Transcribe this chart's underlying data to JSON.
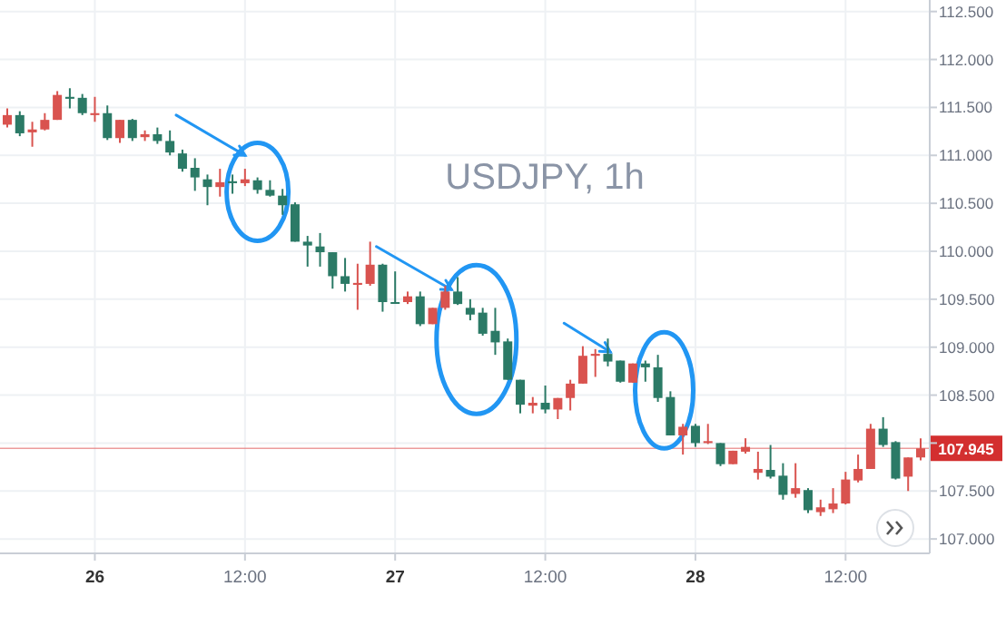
{
  "chart_data": {
    "type": "candlestick",
    "title": "USDJPY, 1h",
    "categories": [
      null,
      null,
      null,
      null,
      null,
      null,
      null,
      "26",
      null,
      null,
      null,
      null,
      null,
      null,
      null,
      null,
      null,
      null,
      null,
      "12:00",
      null,
      null,
      null,
      null,
      null,
      null,
      null,
      null,
      null,
      null,
      null,
      "27",
      null,
      null,
      null,
      null,
      null,
      null,
      null,
      null,
      null,
      null,
      null,
      "12:00",
      null,
      null,
      null,
      null,
      null,
      null,
      null,
      null,
      null,
      null,
      null,
      "28",
      null,
      null,
      null,
      null,
      null,
      null,
      null,
      null,
      null,
      null,
      null,
      "12:00",
      null,
      null,
      null,
      null,
      null,
      null
    ],
    "ohlc": [
      [
        111.32,
        111.49,
        111.29,
        111.42
      ],
      [
        111.42,
        111.46,
        111.2,
        111.23
      ],
      [
        111.24,
        111.35,
        111.09,
        111.27
      ],
      [
        111.27,
        111.44,
        111.26,
        111.37
      ],
      [
        111.37,
        111.67,
        111.37,
        111.63
      ],
      [
        111.61,
        111.7,
        111.49,
        111.59
      ],
      [
        111.6,
        111.64,
        111.42,
        111.44
      ],
      [
        111.42,
        111.61,
        111.35,
        111.44
      ],
      [
        111.44,
        111.52,
        111.16,
        111.18
      ],
      [
        111.18,
        111.37,
        111.13,
        111.37
      ],
      [
        111.37,
        111.38,
        111.15,
        111.18
      ],
      [
        111.19,
        111.26,
        111.15,
        111.22
      ],
      [
        111.22,
        111.29,
        111.12,
        111.15
      ],
      [
        111.15,
        111.26,
        111.0,
        111.03
      ],
      [
        111.02,
        111.06,
        110.83,
        110.86
      ],
      [
        110.87,
        110.97,
        110.63,
        110.77
      ],
      [
        110.75,
        110.8,
        110.48,
        110.67
      ],
      [
        110.67,
        110.86,
        110.57,
        110.72
      ],
      [
        110.73,
        110.8,
        110.6,
        110.71
      ],
      [
        110.71,
        110.86,
        110.68,
        110.75
      ],
      [
        110.74,
        110.77,
        110.6,
        110.64
      ],
      [
        110.64,
        110.74,
        110.57,
        110.58
      ],
      [
        110.58,
        110.65,
        110.38,
        110.48
      ],
      [
        110.49,
        110.51,
        110.1,
        110.1
      ],
      [
        110.1,
        110.16,
        109.84,
        110.06
      ],
      [
        110.05,
        110.19,
        109.84,
        109.99
      ],
      [
        109.99,
        109.99,
        109.61,
        109.74
      ],
      [
        109.74,
        109.93,
        109.58,
        109.66
      ],
      [
        109.65,
        109.87,
        109.39,
        109.67
      ],
      [
        109.66,
        110.1,
        109.64,
        109.86
      ],
      [
        109.86,
        109.87,
        109.37,
        109.47
      ],
      [
        109.47,
        109.79,
        109.46,
        109.46
      ],
      [
        109.47,
        109.58,
        109.45,
        109.53
      ],
      [
        109.53,
        109.58,
        109.22,
        109.24
      ],
      [
        109.24,
        109.41,
        109.24,
        109.41
      ],
      [
        109.41,
        109.64,
        109.39,
        109.58
      ],
      [
        109.58,
        109.73,
        109.44,
        109.45
      ],
      [
        109.41,
        109.5,
        109.28,
        109.34
      ],
      [
        109.36,
        109.41,
        109.12,
        109.14
      ],
      [
        109.17,
        109.41,
        108.92,
        109.05
      ],
      [
        109.06,
        109.09,
        108.66,
        108.66
      ],
      [
        108.66,
        108.66,
        108.31,
        108.4
      ],
      [
        108.39,
        108.48,
        108.31,
        108.42
      ],
      [
        108.42,
        108.6,
        108.31,
        108.35
      ],
      [
        108.35,
        108.47,
        108.25,
        108.47
      ],
      [
        108.47,
        108.66,
        108.34,
        108.62
      ],
      [
        108.62,
        109.01,
        108.62,
        108.91
      ],
      [
        108.91,
        108.98,
        108.69,
        108.93
      ],
      [
        108.93,
        109.09,
        108.8,
        108.85
      ],
      [
        108.86,
        108.86,
        108.63,
        108.64
      ],
      [
        108.63,
        108.83,
        108.63,
        108.83
      ],
      [
        108.83,
        108.86,
        108.64,
        108.79
      ],
      [
        108.79,
        108.92,
        108.43,
        108.47
      ],
      [
        108.48,
        108.54,
        108.08,
        108.08
      ],
      [
        108.08,
        108.2,
        107.88,
        108.17
      ],
      [
        108.18,
        108.2,
        107.96,
        108.0
      ],
      [
        108.0,
        108.2,
        107.99,
        108.02
      ],
      [
        108.0,
        108.0,
        107.76,
        107.78
      ],
      [
        107.78,
        107.92,
        107.78,
        107.92
      ],
      [
        107.91,
        108.05,
        107.89,
        107.96
      ],
      [
        107.69,
        107.91,
        107.62,
        107.73
      ],
      [
        107.72,
        107.98,
        107.63,
        107.65
      ],
      [
        107.66,
        107.79,
        107.41,
        107.46
      ],
      [
        107.47,
        107.79,
        107.43,
        107.53
      ],
      [
        107.51,
        107.53,
        107.27,
        107.3
      ],
      [
        107.28,
        107.41,
        107.24,
        107.33
      ],
      [
        107.31,
        107.53,
        107.27,
        107.37
      ],
      [
        107.37,
        107.7,
        107.36,
        107.62
      ],
      [
        107.61,
        107.88,
        107.59,
        107.73
      ],
      [
        107.73,
        108.2,
        107.73,
        108.15
      ],
      [
        108.15,
        108.27,
        107.96,
        107.98
      ],
      [
        108.01,
        108.02,
        107.62,
        107.63
      ],
      [
        107.65,
        107.85,
        107.5,
        107.85
      ],
      [
        107.85,
        108.05,
        107.82,
        107.945
      ]
    ],
    "ylim": [
      106.85,
      112.62
    ],
    "yticks": [
      {
        "value": 107,
        "label": "107.000"
      },
      {
        "value": 107.5,
        "label": "107.500"
      },
      {
        "value": 108,
        "label": null
      },
      {
        "value": 108.5,
        "label": "108.500"
      },
      {
        "value": 109,
        "label": "109.000"
      },
      {
        "value": 109.5,
        "label": "109.500"
      },
      {
        "value": 110,
        "label": "110.000"
      },
      {
        "value": 110.5,
        "label": "110.500"
      },
      {
        "value": 111,
        "label": "111.000"
      },
      {
        "value": 111.5,
        "label": "111.500"
      },
      {
        "value": 112,
        "label": "112.000"
      },
      {
        "value": 112.5,
        "label": "112.500"
      }
    ],
    "grid": true,
    "ref_lines": [
      {
        "axis": "y",
        "value": 107.945,
        "label": "107.945",
        "color": "#e57373"
      }
    ]
  }
}
